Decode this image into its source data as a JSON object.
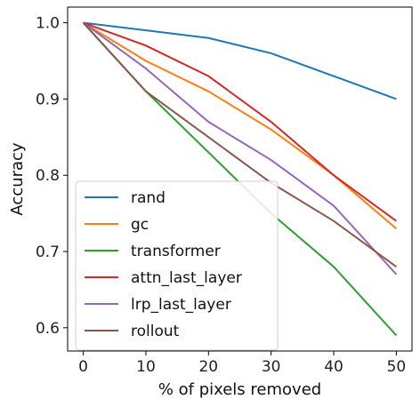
{
  "chart_data": {
    "type": "line",
    "title": "",
    "xlabel": "% of pixels removed",
    "ylabel": "Accuracy",
    "x": [
      0,
      10,
      20,
      30,
      40,
      50
    ],
    "xticks": [
      0,
      10,
      20,
      30,
      40,
      50
    ],
    "yticks": [
      0.6,
      0.7,
      0.8,
      0.9,
      1.0
    ],
    "xlim": [
      -2.5,
      52.5
    ],
    "ylim": [
      0.5695,
      1.0205
    ],
    "grid": false,
    "legend_position": "lower-left",
    "series": [
      {
        "name": "rand",
        "color": "#1f77b4",
        "values": [
          1.0,
          0.99,
          0.98,
          0.96,
          0.93,
          0.9
        ]
      },
      {
        "name": "gc",
        "color": "#ff7f0e",
        "values": [
          1.0,
          0.95,
          0.91,
          0.86,
          0.8,
          0.73
        ]
      },
      {
        "name": "transformer",
        "color": "#2ca02c",
        "values": [
          1.0,
          0.91,
          0.83,
          0.75,
          0.68,
          0.59
        ]
      },
      {
        "name": "attn_last_layer",
        "color": "#d62728",
        "values": [
          1.0,
          0.97,
          0.93,
          0.87,
          0.8,
          0.74
        ]
      },
      {
        "name": "lrp_last_layer",
        "color": "#9467bd",
        "values": [
          1.0,
          0.94,
          0.87,
          0.82,
          0.76,
          0.67
        ]
      },
      {
        "name": "rollout",
        "color": "#8c564b",
        "values": [
          1.0,
          0.91,
          0.85,
          0.79,
          0.74,
          0.68
        ]
      }
    ]
  }
}
